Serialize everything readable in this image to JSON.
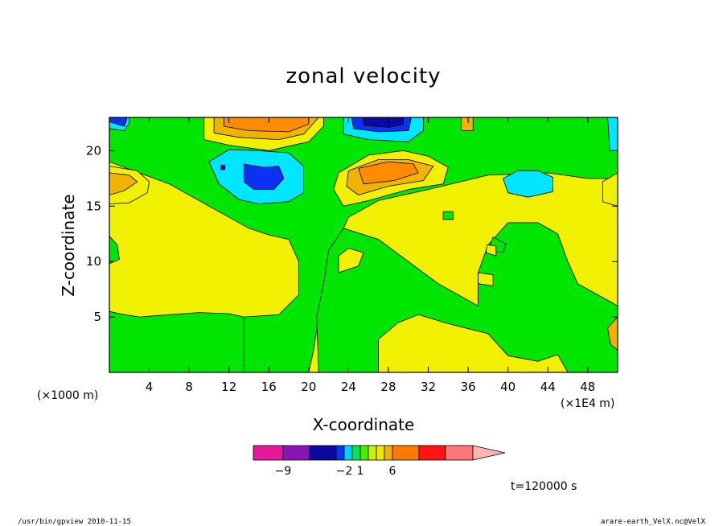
{
  "chart_data": {
    "type": "heatmap",
    "title": "zonal velocity",
    "xlabel": "X-coordinate",
    "ylabel": "Z-coordinate",
    "x_unit_left": "(×1000 m)",
    "x_unit_right": "(×1E4 m)",
    "time_label": "t=120000 s",
    "xlim": [
      0,
      51
    ],
    "ylim": [
      0,
      23
    ],
    "x_ticks": [
      4,
      8,
      12,
      16,
      20,
      24,
      28,
      32,
      36,
      40,
      44,
      48
    ],
    "y_ticks": [
      5,
      10,
      15,
      20
    ],
    "field_regions": [
      {
        "level": "yellow",
        "polygon": [
          [
            0,
            0
          ],
          [
            51,
            0
          ],
          [
            51,
            23
          ],
          [
            0,
            23
          ]
        ]
      },
      {
        "level": "green",
        "polygon": [
          [
            14,
            0
          ],
          [
            20,
            0
          ],
          [
            20.5,
            2
          ],
          [
            21,
            5
          ],
          [
            21.5,
            8
          ],
          [
            22.5,
            11
          ],
          [
            24,
            14
          ],
          [
            27,
            15.5
          ],
          [
            32,
            16.5
          ],
          [
            38,
            17.8
          ],
          [
            44,
            18
          ],
          [
            48,
            17.5
          ],
          [
            51,
            17.5
          ],
          [
            51,
            23
          ],
          [
            0,
            23
          ],
          [
            0,
            19
          ],
          [
            3,
            18
          ],
          [
            6,
            17
          ],
          [
            10,
            15
          ],
          [
            14,
            13
          ],
          [
            16,
            12.4
          ],
          [
            18,
            12
          ],
          [
            19,
            10
          ],
          [
            19,
            7
          ],
          [
            17,
            5.2
          ],
          [
            13.5,
            5
          ],
          [
            13.5,
            0
          ]
        ]
      },
      {
        "level": "green",
        "polygon": [
          [
            0,
            0
          ],
          [
            13.5,
            0
          ],
          [
            13.5,
            5
          ],
          [
            12,
            5.3
          ],
          [
            9,
            5.4
          ],
          [
            6,
            5.2
          ],
          [
            3,
            5
          ],
          [
            1,
            5.3
          ],
          [
            0,
            5.5
          ]
        ]
      },
      {
        "level": "green",
        "polygon": [
          [
            21,
            0
          ],
          [
            27,
            0
          ],
          [
            27,
            3
          ],
          [
            29,
            4.5
          ],
          [
            31,
            5.2
          ],
          [
            34,
            4.4
          ],
          [
            38,
            3.5
          ],
          [
            40,
            1.5
          ],
          [
            43,
            1
          ],
          [
            45,
            1.6
          ],
          [
            46,
            0
          ],
          [
            51,
            0
          ],
          [
            51,
            6
          ],
          [
            47,
            8
          ],
          [
            46,
            10
          ],
          [
            45,
            12.5
          ],
          [
            43,
            13.5
          ],
          [
            40,
            13.5
          ],
          [
            38,
            11.5
          ],
          [
            37,
            9
          ],
          [
            37,
            6
          ],
          [
            33,
            8
          ],
          [
            30,
            10
          ],
          [
            27,
            12
          ],
          [
            23.5,
            13
          ],
          [
            22,
            11
          ],
          [
            21.5,
            8
          ],
          [
            20.8,
            5
          ]
        ]
      },
      {
        "level": "green",
        "polygon": [
          [
            0,
            9.8
          ],
          [
            1,
            10.2
          ],
          [
            0.8,
            11.5
          ],
          [
            0,
            12.3
          ]
        ]
      },
      {
        "level": "yellow",
        "polygon": [
          [
            0,
            15.2
          ],
          [
            2,
            15.3
          ],
          [
            3.8,
            16.2
          ],
          [
            4,
            17.2
          ],
          [
            2.8,
            18.2
          ],
          [
            0,
            18.6
          ]
        ]
      },
      {
        "level": "yellow",
        "polygon": [
          [
            49.5,
            15.4
          ],
          [
            51,
            15
          ],
          [
            51,
            18
          ],
          [
            49.5,
            17.2
          ]
        ]
      },
      {
        "level": "yellow",
        "polygon": [
          [
            9.5,
            21
          ],
          [
            12,
            20.5
          ],
          [
            16,
            20
          ],
          [
            20,
            20.8
          ],
          [
            21.5,
            22.2
          ],
          [
            21.5,
            23
          ],
          [
            9.5,
            23
          ]
        ]
      },
      {
        "level": "yellow",
        "polygon": [
          [
            23,
            18
          ],
          [
            26,
            19.6
          ],
          [
            29.5,
            20
          ],
          [
            32,
            19.5
          ],
          [
            34,
            18.5
          ],
          [
            33.5,
            17
          ],
          [
            30,
            16.5
          ],
          [
            26,
            15.5
          ],
          [
            23.5,
            15
          ],
          [
            22.5,
            16.5
          ]
        ]
      },
      {
        "level": "orange-light",
        "polygon": [
          [
            0,
            16
          ],
          [
            1.5,
            16.4
          ],
          [
            2.8,
            17.2
          ],
          [
            2,
            17.8
          ],
          [
            0,
            18
          ]
        ]
      },
      {
        "level": "orange-light",
        "polygon": [
          [
            24,
            18.2
          ],
          [
            27,
            19.2
          ],
          [
            30,
            19.2
          ],
          [
            32.5,
            18.6
          ],
          [
            31.5,
            17.3
          ],
          [
            28,
            16.8
          ],
          [
            25,
            16
          ],
          [
            23.8,
            16.8
          ]
        ]
      },
      {
        "level": "orange",
        "polygon": [
          [
            25,
            18.4
          ],
          [
            28,
            19
          ],
          [
            30.5,
            18.8
          ],
          [
            31,
            18
          ],
          [
            28.5,
            17.3
          ],
          [
            25.5,
            17
          ]
        ]
      },
      {
        "level": "orange-light",
        "polygon": [
          [
            10.5,
            21.6
          ],
          [
            13,
            21.2
          ],
          [
            17,
            21
          ],
          [
            19.5,
            21.5
          ],
          [
            21,
            23
          ],
          [
            10.5,
            23
          ]
        ]
      },
      {
        "level": "orange",
        "polygon": [
          [
            11.5,
            22.2
          ],
          [
            14,
            21.8
          ],
          [
            18,
            21.7
          ],
          [
            20,
            22.4
          ],
          [
            20,
            23
          ],
          [
            11.5,
            23
          ]
        ]
      },
      {
        "level": "cyan",
        "polygon": [
          [
            10,
            19
          ],
          [
            12,
            20.1
          ],
          [
            15,
            20
          ],
          [
            18,
            19.8
          ],
          [
            19.5,
            18.6
          ],
          [
            19.5,
            16.2
          ],
          [
            18,
            15.4
          ],
          [
            15,
            15.2
          ],
          [
            13,
            15.6
          ],
          [
            11,
            17
          ]
        ]
      },
      {
        "level": "cyan",
        "polygon": [
          [
            23.5,
            21.5
          ],
          [
            26,
            21
          ],
          [
            30,
            20.8
          ],
          [
            31.5,
            21.8
          ],
          [
            31.5,
            23
          ],
          [
            23.5,
            23
          ]
        ]
      },
      {
        "level": "cyan",
        "polygon": [
          [
            39.5,
            17.5
          ],
          [
            41,
            18.2
          ],
          [
            43,
            18.2
          ],
          [
            44.5,
            17.6
          ],
          [
            44.5,
            16.3
          ],
          [
            42,
            15.8
          ],
          [
            40,
            16.2
          ]
        ]
      },
      {
        "level": "cyan",
        "polygon": [
          [
            0,
            22
          ],
          [
            1.5,
            21.8
          ],
          [
            2,
            22.5
          ],
          [
            2,
            23
          ],
          [
            0,
            23
          ]
        ]
      },
      {
        "level": "cyan",
        "polygon": [
          [
            50.2,
            20
          ],
          [
            51,
            20
          ],
          [
            51,
            23
          ],
          [
            50,
            23
          ]
        ]
      },
      {
        "level": "blue",
        "polygon": [
          [
            13.5,
            18.8
          ],
          [
            15.5,
            18.5
          ],
          [
            17,
            18.6
          ],
          [
            17.5,
            17.5
          ],
          [
            16.5,
            16.5
          ],
          [
            14.5,
            16.5
          ],
          [
            13.5,
            17.2
          ]
        ]
      },
      {
        "level": "blue",
        "polygon": [
          [
            24.5,
            22
          ],
          [
            27,
            21.7
          ],
          [
            30,
            21.8
          ],
          [
            30.3,
            23
          ],
          [
            24.3,
            23
          ]
        ]
      },
      {
        "level": "navy",
        "polygon": [
          [
            25.5,
            22.3
          ],
          [
            28,
            22.1
          ],
          [
            29.5,
            22.4
          ],
          [
            29.5,
            23
          ],
          [
            25.5,
            23
          ]
        ]
      },
      {
        "level": "blue",
        "polygon": [
          [
            0,
            22.6
          ],
          [
            1.5,
            22.2
          ],
          [
            1.8,
            23
          ],
          [
            0,
            23
          ]
        ]
      },
      {
        "level": "navy",
        "polygon": [
          [
            11.2,
            18.3
          ],
          [
            11.6,
            18.3
          ],
          [
            11.6,
            18.7
          ],
          [
            11.2,
            18.7
          ]
        ]
      },
      {
        "level": "green",
        "polygon": [
          [
            33.5,
            13.8
          ],
          [
            34.5,
            13.8
          ],
          [
            34.5,
            14.5
          ],
          [
            33.5,
            14.5
          ]
        ]
      },
      {
        "level": "green",
        "polygon": [
          [
            38,
            11
          ],
          [
            39.5,
            10.8
          ],
          [
            39.8,
            11.6
          ],
          [
            38.5,
            12.2
          ]
        ]
      },
      {
        "level": "yellow",
        "polygon": [
          [
            37,
            8
          ],
          [
            38.5,
            7.8
          ],
          [
            38.5,
            8.8
          ],
          [
            37,
            9
          ]
        ]
      },
      {
        "level": "yellow",
        "polygon": [
          [
            23,
            9
          ],
          [
            25,
            9.6
          ],
          [
            25.5,
            10.8
          ],
          [
            24,
            11.2
          ],
          [
            23,
            10.5
          ]
        ]
      },
      {
        "level": "yellow",
        "polygon": [
          [
            37.8,
            10.8
          ],
          [
            38.8,
            10.5
          ],
          [
            38.8,
            11.4
          ],
          [
            37.9,
            11.5
          ]
        ]
      },
      {
        "level": "orange-light",
        "polygon": [
          [
            35.3,
            21.8
          ],
          [
            36.5,
            21.8
          ],
          [
            36.5,
            23
          ],
          [
            35.3,
            23
          ]
        ]
      },
      {
        "level": "orange-light",
        "polygon": [
          [
            51,
            2
          ],
          [
            51,
            5
          ],
          [
            50,
            4
          ],
          [
            50.3,
            2.5
          ]
        ]
      }
    ],
    "colorbar": {
      "colors": [
        "#e6189a",
        "#8c14b4",
        "#0a0aa0",
        "#0a32f0",
        "#00d2ff",
        "#00e65a",
        "#46f000",
        "#c8f000",
        "#f0e600",
        "#f0b400",
        "#ff7800",
        "#ff1414",
        "#ff7878",
        "#ffb4b4"
      ],
      "tick_labels": [
        {
          "index": 1,
          "label": "−9"
        },
        {
          "index": 4,
          "label": "−2"
        },
        {
          "index": 6,
          "label": "1"
        },
        {
          "index": 10,
          "label": "6"
        }
      ]
    },
    "level_colors": {
      "navy": "#0a0aa0",
      "blue": "#0a32f0",
      "cyan": "#00e6ff",
      "green": "#00e600",
      "yellow": "#f0f000",
      "orange-light": "#f0b400",
      "orange": "#ff8c00"
    }
  },
  "footer": {
    "left": "/usr/bin/gpview  2010-11-15",
    "right": "arare-earth_VelX.nc@VelX"
  }
}
